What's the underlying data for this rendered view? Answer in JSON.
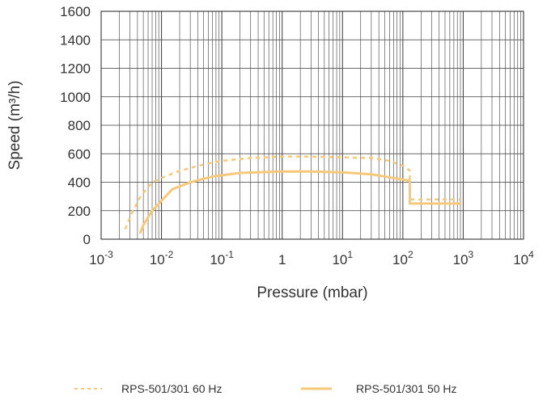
{
  "chart_data": {
    "type": "line",
    "xscale": "log",
    "xlim": [
      0.001,
      10000
    ],
    "ylim": [
      0,
      1600
    ],
    "xlabel": "Pressure (mbar)",
    "ylabel": "Speed (m³/h)",
    "grid": true,
    "legend_position": "bottom",
    "y_ticks": [
      0,
      200,
      400,
      600,
      800,
      1000,
      1200,
      1400,
      1600
    ],
    "x_ticks": [
      {
        "value": 0.001,
        "base": "10",
        "exp": "-3"
      },
      {
        "value": 0.01,
        "base": "10",
        "exp": "-2"
      },
      {
        "value": 0.1,
        "base": "10",
        "exp": "-1"
      },
      {
        "value": 1,
        "base": "1",
        "exp": ""
      },
      {
        "value": 10,
        "base": "10",
        "exp": "1"
      },
      {
        "value": 100,
        "base": "10",
        "exp": "2"
      },
      {
        "value": 1000,
        "base": "10",
        "exp": "3"
      },
      {
        "value": 10000,
        "base": "10",
        "exp": "4"
      }
    ],
    "series": [
      {
        "name": "RPS-501/301 60 Hz",
        "style": "dashed",
        "color": "#F7C87A",
        "points": [
          [
            0.0025,
            70
          ],
          [
            0.0032,
            180
          ],
          [
            0.0045,
            300
          ],
          [
            0.007,
            400
          ],
          [
            0.01,
            430
          ],
          [
            0.02,
            480
          ],
          [
            0.05,
            525
          ],
          [
            0.1,
            550
          ],
          [
            0.3,
            570
          ],
          [
            1,
            580
          ],
          [
            3,
            580
          ],
          [
            10,
            575
          ],
          [
            30,
            570
          ],
          [
            60,
            550
          ],
          [
            110,
            510
          ],
          [
            130,
            480
          ],
          [
            130,
            280
          ],
          [
            900,
            280
          ]
        ]
      },
      {
        "name": "RPS-501/301 50 Hz",
        "style": "solid",
        "color": "#F7C87A",
        "points": [
          [
            0.0044,
            40
          ],
          [
            0.005,
            100
          ],
          [
            0.007,
            200
          ],
          [
            0.015,
            350
          ],
          [
            0.03,
            400
          ],
          [
            0.07,
            440
          ],
          [
            0.2,
            465
          ],
          [
            1,
            475
          ],
          [
            3,
            475
          ],
          [
            10,
            470
          ],
          [
            30,
            455
          ],
          [
            70,
            430
          ],
          [
            130,
            410
          ],
          [
            130,
            250
          ],
          [
            900,
            250
          ]
        ]
      }
    ]
  }
}
